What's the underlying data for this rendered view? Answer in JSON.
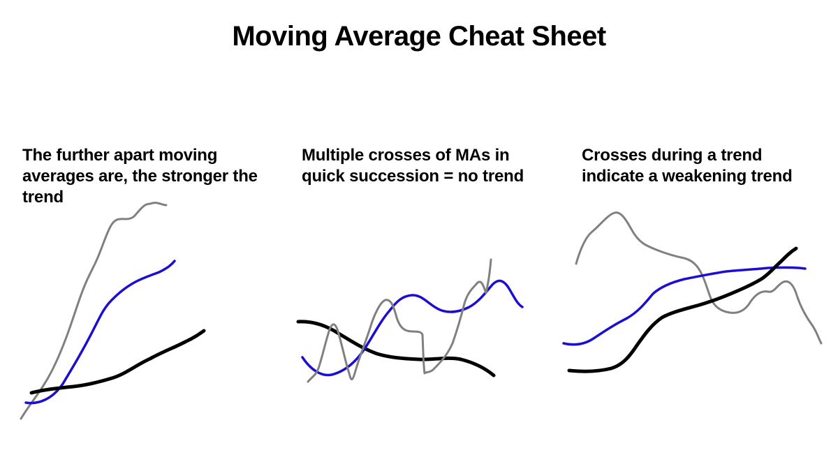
{
  "title": "Moving Average Cheat Sheet",
  "panels": [
    {
      "caption_lines": [
        "The further apart moving",
        "averages are, the stronger the",
        "trend"
      ]
    },
    {
      "caption_lines": [
        "Multiple crosses of MAs in",
        "quick succession = no trend"
      ]
    },
    {
      "caption_lines": [
        "Crosses during a trend",
        "indicate a weakening trend"
      ]
    }
  ],
  "colors": {
    "fast_ma": "#808080",
    "mid_ma": "#1b0ed2",
    "slow_ma": "#000000",
    "background": "#ffffff"
  }
}
